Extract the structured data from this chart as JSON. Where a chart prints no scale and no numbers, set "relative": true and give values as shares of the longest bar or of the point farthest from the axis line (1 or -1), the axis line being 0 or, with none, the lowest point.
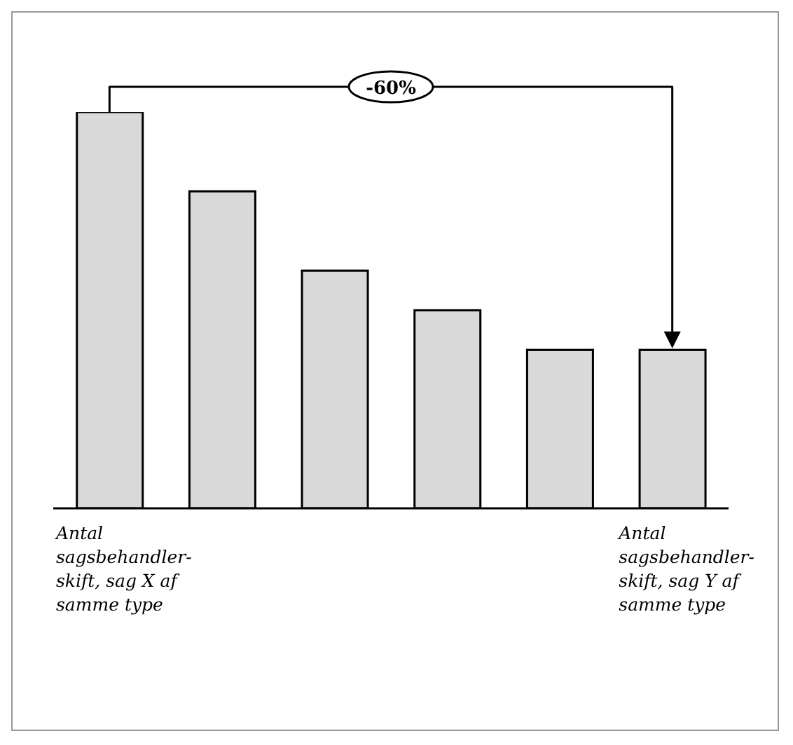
{
  "chart_data": {
    "type": "bar",
    "relative": true,
    "categories": [
      "Antal sagsbehandler-skift, sag X af samme type",
      null,
      null,
      null,
      null,
      "Antal sagsbehandler-skift, sag Y af samme type"
    ],
    "values": [
      1,
      0.8,
      0.6,
      0.5,
      0.4,
      0.4
    ],
    "color": "#d9d9d9",
    "annotations": [
      "-60%"
    ]
  }
}
